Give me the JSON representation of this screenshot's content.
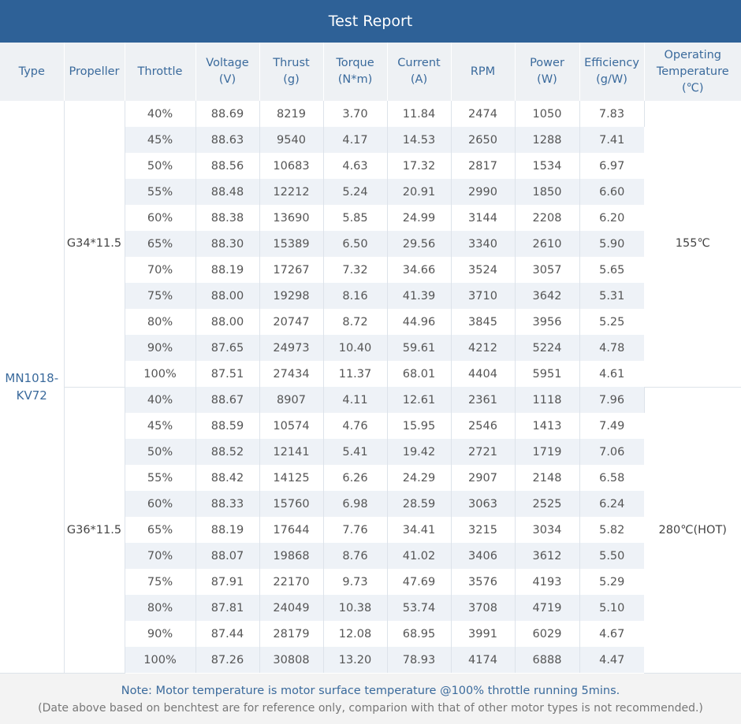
{
  "title": "Test Report",
  "headers": {
    "type": "Type",
    "propeller": "Propeller",
    "throttle": "Throttle",
    "voltage": [
      "Voltage",
      "(V)"
    ],
    "thrust": [
      "Thrust",
      "(g)"
    ],
    "torque": [
      "Torque",
      "(N*m)"
    ],
    "current": [
      "Current",
      "(A)"
    ],
    "rpm": "RPM",
    "power": [
      "Power",
      "(W)"
    ],
    "efficiency": [
      "Efficiency",
      "(g/W)"
    ],
    "temperature": [
      "Operating",
      "Temperature",
      "(℃)"
    ]
  },
  "type": [
    "MN1018-",
    "KV72"
  ],
  "groups": [
    {
      "propeller": "G34*11.5",
      "temperature": "155℃",
      "rows": [
        [
          "40%",
          "88.69",
          "8219",
          "3.70",
          "11.84",
          "2474",
          "1050",
          "7.83"
        ],
        [
          "45%",
          "88.63",
          "9540",
          "4.17",
          "14.53",
          "2650",
          "1288",
          "7.41"
        ],
        [
          "50%",
          "88.56",
          "10683",
          "4.63",
          "17.32",
          "2817",
          "1534",
          "6.97"
        ],
        [
          "55%",
          "88.48",
          "12212",
          "5.24",
          "20.91",
          "2990",
          "1850",
          "6.60"
        ],
        [
          "60%",
          "88.38",
          "13690",
          "5.85",
          "24.99",
          "3144",
          "2208",
          "6.20"
        ],
        [
          "65%",
          "88.30",
          "15389",
          "6.50",
          "29.56",
          "3340",
          "2610",
          "5.90"
        ],
        [
          "70%",
          "88.19",
          "17267",
          "7.32",
          "34.66",
          "3524",
          "3057",
          "5.65"
        ],
        [
          "75%",
          "88.00",
          "19298",
          "8.16",
          "41.39",
          "3710",
          "3642",
          "5.31"
        ],
        [
          "80%",
          "88.00",
          "20747",
          "8.72",
          "44.96",
          "3845",
          "3956",
          "5.25"
        ],
        [
          "90%",
          "87.65",
          "24973",
          "10.40",
          "59.61",
          "4212",
          "5224",
          "4.78"
        ],
        [
          "100%",
          "87.51",
          "27434",
          "11.37",
          "68.01",
          "4404",
          "5951",
          "4.61"
        ]
      ]
    },
    {
      "propeller": "G36*11.5",
      "temperature": "280℃(HOT)",
      "rows": [
        [
          "40%",
          "88.67",
          "8907",
          "4.11",
          "12.61",
          "2361",
          "1118",
          "7.96"
        ],
        [
          "45%",
          "88.59",
          "10574",
          "4.76",
          "15.95",
          "2546",
          "1413",
          "7.49"
        ],
        [
          "50%",
          "88.52",
          "12141",
          "5.41",
          "19.42",
          "2721",
          "1719",
          "7.06"
        ],
        [
          "55%",
          "88.42",
          "14125",
          "6.26",
          "24.29",
          "2907",
          "2148",
          "6.58"
        ],
        [
          "60%",
          "88.33",
          "15760",
          "6.98",
          "28.59",
          "3063",
          "2525",
          "6.24"
        ],
        [
          "65%",
          "88.19",
          "17644",
          "7.76",
          "34.41",
          "3215",
          "3034",
          "5.82"
        ],
        [
          "70%",
          "88.07",
          "19868",
          "8.76",
          "41.02",
          "3406",
          "3612",
          "5.50"
        ],
        [
          "75%",
          "87.91",
          "22170",
          "9.73",
          "47.69",
          "3576",
          "4193",
          "5.29"
        ],
        [
          "80%",
          "87.81",
          "24049",
          "10.38",
          "53.74",
          "3708",
          "4719",
          "5.10"
        ],
        [
          "90%",
          "87.44",
          "28179",
          "12.08",
          "68.95",
          "3991",
          "6029",
          "4.67"
        ],
        [
          "100%",
          "87.26",
          "30808",
          "13.20",
          "78.93",
          "4174",
          "6888",
          "4.47"
        ]
      ]
    }
  ],
  "note": {
    "line1": "Note: Motor temperature is motor surface temperature @100% throttle running 5mins.",
    "line2": "(Date above based on benchtest are for reference only, comparion with that of other motor types is not recommended.)"
  }
}
